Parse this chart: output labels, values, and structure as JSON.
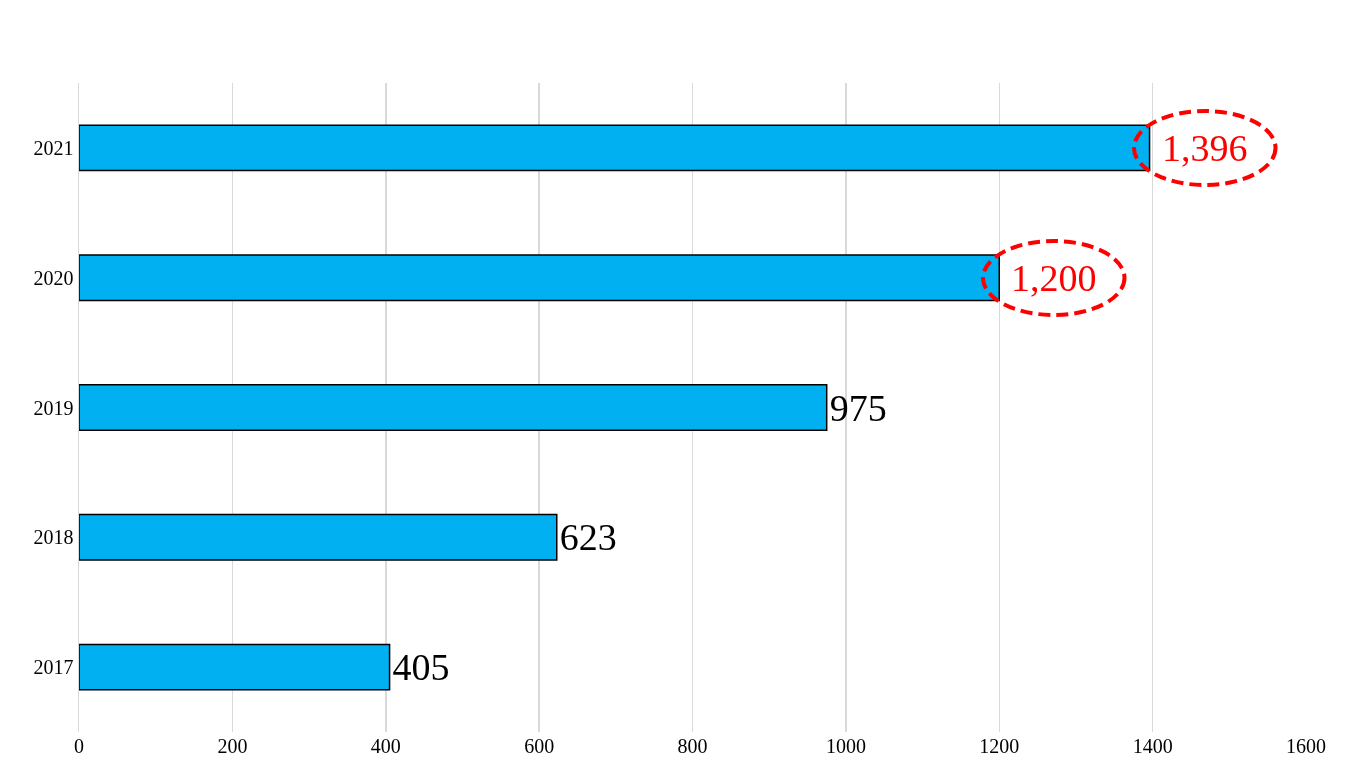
{
  "chart_data": {
    "type": "bar",
    "orientation": "horizontal",
    "categories": [
      "2021",
      "2020",
      "2019",
      "2018",
      "2017"
    ],
    "values": [
      1396,
      1200,
      975,
      623,
      405
    ],
    "value_labels": [
      null,
      null,
      "975",
      "623",
      "405"
    ],
    "annotations": [
      {
        "text": "1,396",
        "x": 1396,
        "y": "2021"
      },
      {
        "text": "1,200",
        "x": 1200,
        "y": "2020"
      }
    ],
    "color": "#00b0f0",
    "xlim": [
      0,
      1600
    ],
    "xticks": [
      0,
      200,
      400,
      600,
      800,
      1000,
      1200,
      1400,
      1600
    ],
    "grid": "x"
  }
}
